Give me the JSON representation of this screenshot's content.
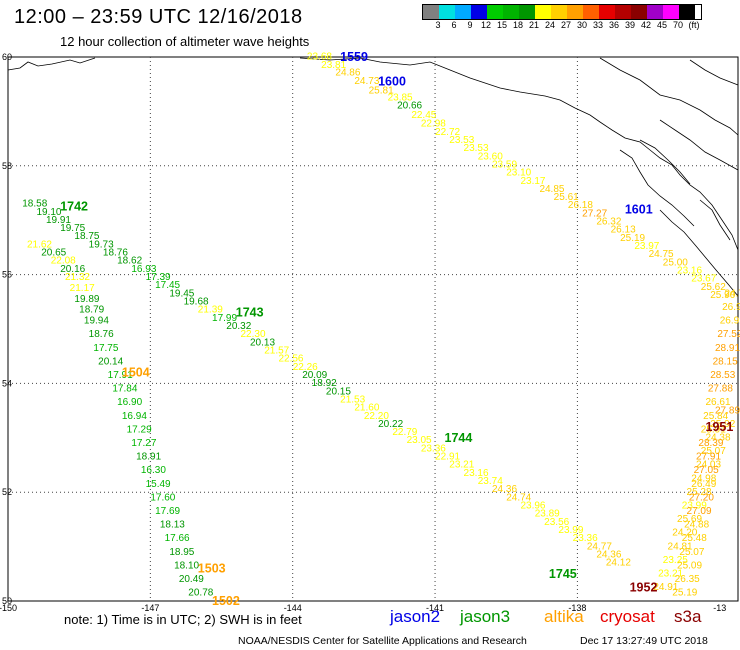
{
  "header": {
    "title": "12:00 – 23:59 UTC 12/16/2018",
    "subtitle": "12 hour collection of altimeter wave heights"
  },
  "legend": {
    "colors": [
      "#808080",
      "#00e0e0",
      "#00aaff",
      "#0000e6",
      "#00cc00",
      "#00b400",
      "#009600",
      "#ffff00",
      "#ffd000",
      "#ffa000",
      "#ff6000",
      "#e60000",
      "#b40000",
      "#8a0000",
      "#a000c8",
      "#ff00ff",
      "#000000"
    ],
    "labels": [
      "3",
      "6",
      "9",
      "12",
      "15",
      "18",
      "21",
      "24",
      "27",
      "30",
      "33",
      "36",
      "39",
      "42",
      "45",
      "70",
      "(ft)"
    ]
  },
  "axes": {
    "lon_labels": [
      "-150",
      "-147",
      "-144",
      "-141",
      "-138",
      "-13"
    ],
    "lat_labels": [
      "60",
      "58",
      "56",
      "54",
      "52",
      "50"
    ]
  },
  "note": "note: 1) Time is in UTC; 2) SWH is in feet",
  "satellites": [
    {
      "name": "jason2",
      "color": "#0000e6"
    },
    {
      "name": "jason3",
      "color": "#009600"
    },
    {
      "name": "altika",
      "color": "#ffa000"
    },
    {
      "name": "cryosat",
      "color": "#e60000"
    },
    {
      "name": "s3a",
      "color": "#8a0000"
    }
  ],
  "footer": {
    "org": "NOAA/NESDIS Center for Satellite Applications and Research",
    "timestamp": "Dec 17 13:27:49 UTC 2018"
  },
  "chart_data": {
    "type": "scatter",
    "xlim": [
      -150,
      -135
    ],
    "ylim": [
      50,
      60
    ],
    "time_labels": [
      {
        "text": "1559",
        "lon": -143.0,
        "lat": 60.0,
        "color": "#0000e6"
      },
      {
        "text": "1600",
        "lon": -142.2,
        "lat": 59.55,
        "color": "#0000e6"
      },
      {
        "text": "1601",
        "lon": -137.0,
        "lat": 57.2,
        "color": "#0000e6"
      },
      {
        "text": "1742",
        "lon": -148.9,
        "lat": 57.25,
        "color": "#009600"
      },
      {
        "text": "1743",
        "lon": -145.2,
        "lat": 55.3,
        "color": "#009600"
      },
      {
        "text": "1744",
        "lon": -140.8,
        "lat": 53.0,
        "color": "#009600"
      },
      {
        "text": "1745",
        "lon": -138.6,
        "lat": 50.5,
        "color": "#009600"
      },
      {
        "text": "1504",
        "lon": -147.6,
        "lat": 54.2,
        "color": "#ffa000"
      },
      {
        "text": "1503",
        "lon": -146.0,
        "lat": 50.6,
        "color": "#ffa000"
      },
      {
        "text": "1502",
        "lon": -145.7,
        "lat": 50.0,
        "color": "#ffa000"
      },
      {
        "text": "1951",
        "lon": -135.3,
        "lat": 53.2,
        "color": "#8a0000"
      },
      {
        "text": "1952",
        "lon": -136.9,
        "lat": 50.25,
        "color": "#8a0000"
      }
    ],
    "tracks": [
      {
        "name": "jason2 pass 1559-1601",
        "points": [
          {
            "lon": -143.7,
            "lat": 59.95,
            "v": 23.68
          },
          {
            "lon": -143.4,
            "lat": 59.8,
            "v": 23.81
          },
          {
            "lon": -143.1,
            "lat": 59.66,
            "v": 24.86
          },
          {
            "lon": -142.7,
            "lat": 59.5,
            "v": 24.73
          },
          {
            "lon": -142.4,
            "lat": 59.33,
            "v": 25.81
          },
          {
            "lon": -142.0,
            "lat": 59.2,
            "v": 23.85
          },
          {
            "lon": -141.8,
            "lat": 59.05,
            "v": 20.66
          },
          {
            "lon": -141.5,
            "lat": 58.88,
            "v": 22.45
          },
          {
            "lon": -141.3,
            "lat": 58.72,
            "v": 22.98
          },
          {
            "lon": -141.0,
            "lat": 58.57,
            "v": 22.72
          },
          {
            "lon": -140.7,
            "lat": 58.42,
            "v": 23.53
          },
          {
            "lon": -140.4,
            "lat": 58.27,
            "v": 23.53
          },
          {
            "lon": -140.1,
            "lat": 58.12,
            "v": 23.6
          },
          {
            "lon": -139.8,
            "lat": 57.97,
            "v": 23.59
          },
          {
            "lon": -139.5,
            "lat": 57.82,
            "v": 23.1
          },
          {
            "lon": -139.2,
            "lat": 57.67,
            "v": 23.17
          },
          {
            "lon": -138.8,
            "lat": 57.52,
            "v": 24.85
          },
          {
            "lon": -138.5,
            "lat": 57.37,
            "v": 25.61
          },
          {
            "lon": -138.2,
            "lat": 57.22,
            "v": 26.18
          },
          {
            "lon": -137.9,
            "lat": 57.07,
            "v": 27.27
          },
          {
            "lon": -137.6,
            "lat": 56.92,
            "v": 26.32
          },
          {
            "lon": -137.3,
            "lat": 56.77,
            "v": 26.13
          },
          {
            "lon": -137.1,
            "lat": 56.62,
            "v": 25.19
          },
          {
            "lon": -136.8,
            "lat": 56.47,
            "v": 23.97
          },
          {
            "lon": -136.5,
            "lat": 56.32,
            "v": 24.75
          },
          {
            "lon": -136.2,
            "lat": 56.17,
            "v": 25.0
          },
          {
            "lon": -135.9,
            "lat": 56.02,
            "v": 23.16
          },
          {
            "lon": -135.6,
            "lat": 55.87,
            "v": 23.67
          },
          {
            "lon": -135.4,
            "lat": 55.72,
            "v": 25.62
          },
          {
            "lon": -135.2,
            "lat": 55.57,
            "v": 25.9
          }
        ]
      },
      {
        "name": "jason3 pass 1742-1745",
        "points": [
          {
            "lon": -149.7,
            "lat": 57.25,
            "v": 18.58
          },
          {
            "lon": -149.4,
            "lat": 57.1,
            "v": 19.1
          },
          {
            "lon": -149.2,
            "lat": 56.95,
            "v": 19.91
          },
          {
            "lon": -148.9,
            "lat": 56.8,
            "v": 19.75
          },
          {
            "lon": -148.6,
            "lat": 56.65,
            "v": 18.75
          },
          {
            "lon": -148.3,
            "lat": 56.5,
            "v": 19.73
          },
          {
            "lon": -148.0,
            "lat": 56.35,
            "v": 18.76
          },
          {
            "lon": -147.7,
            "lat": 56.2,
            "v": 18.62
          },
          {
            "lon": -147.4,
            "lat": 56.05,
            "v": 16.93
          },
          {
            "lon": -147.1,
            "lat": 55.9,
            "v": 17.39
          },
          {
            "lon": -146.9,
            "lat": 55.75,
            "v": 17.45
          },
          {
            "lon": -146.6,
            "lat": 55.6,
            "v": 19.45
          },
          {
            "lon": -146.3,
            "lat": 55.45,
            "v": 19.68
          },
          {
            "lon": -146.0,
            "lat": 55.3,
            "v": 21.39
          },
          {
            "lon": -145.7,
            "lat": 55.15,
            "v": 17.99
          },
          {
            "lon": -145.4,
            "lat": 55.0,
            "v": 20.32
          },
          {
            "lon": -145.1,
            "lat": 54.85,
            "v": 22.3
          },
          {
            "lon": -144.9,
            "lat": 54.7,
            "v": 20.13
          },
          {
            "lon": -144.6,
            "lat": 54.55,
            "v": 21.57
          },
          {
            "lon": -144.3,
            "lat": 54.4,
            "v": 22.56
          },
          {
            "lon": -144.0,
            "lat": 54.25,
            "v": 22.26
          },
          {
            "lon": -143.8,
            "lat": 54.1,
            "v": 20.09
          },
          {
            "lon": -143.6,
            "lat": 53.95,
            "v": 18.92
          },
          {
            "lon": -143.3,
            "lat": 53.8,
            "v": 20.15
          },
          {
            "lon": -143.0,
            "lat": 53.65,
            "v": 21.53
          },
          {
            "lon": -142.7,
            "lat": 53.5,
            "v": 21.6
          },
          {
            "lon": -142.5,
            "lat": 53.35,
            "v": 22.2
          },
          {
            "lon": -142.2,
            "lat": 53.2,
            "v": 20.22
          },
          {
            "lon": -141.9,
            "lat": 53.05,
            "v": 22.79
          },
          {
            "lon": -141.6,
            "lat": 52.9,
            "v": 23.05
          },
          {
            "lon": -141.3,
            "lat": 52.75,
            "v": 23.36
          },
          {
            "lon": -141.0,
            "lat": 52.6,
            "v": 22.91
          },
          {
            "lon": -140.7,
            "lat": 52.45,
            "v": 23.21
          },
          {
            "lon": -140.4,
            "lat": 52.3,
            "v": 23.16
          },
          {
            "lon": -140.1,
            "lat": 52.15,
            "v": 23.74
          },
          {
            "lon": -139.8,
            "lat": 52.0,
            "v": 24.36
          },
          {
            "lon": -139.5,
            "lat": 51.85,
            "v": 24.74
          },
          {
            "lon": -139.2,
            "lat": 51.7,
            "v": 23.96
          },
          {
            "lon": -138.9,
            "lat": 51.55,
            "v": 23.89
          },
          {
            "lon": -138.7,
            "lat": 51.4,
            "v": 23.56
          },
          {
            "lon": -138.4,
            "lat": 51.25,
            "v": 23.99
          },
          {
            "lon": -138.1,
            "lat": 51.1,
            "v": 23.36
          },
          {
            "lon": -137.8,
            "lat": 50.95,
            "v": 24.77
          },
          {
            "lon": -137.6,
            "lat": 50.8,
            "v": 24.36
          },
          {
            "lon": -137.4,
            "lat": 50.65,
            "v": 24.12
          }
        ]
      },
      {
        "name": "altika pass 1502-1504",
        "points": [
          {
            "lon": -149.6,
            "lat": 56.5,
            "v": 21.62
          },
          {
            "lon": -149.3,
            "lat": 56.35,
            "v": 20.65
          },
          {
            "lon": -149.1,
            "lat": 56.2,
            "v": 22.08
          },
          {
            "lon": -148.9,
            "lat": 56.05,
            "v": 20.16
          },
          {
            "lon": -148.8,
            "lat": 55.9,
            "v": 21.32
          },
          {
            "lon": -148.7,
            "lat": 55.7,
            "v": 21.17
          },
          {
            "lon": -148.6,
            "lat": 55.5,
            "v": 19.89
          },
          {
            "lon": -148.5,
            "lat": 55.3,
            "v": 18.79
          },
          {
            "lon": -148.4,
            "lat": 55.1,
            "v": 19.94
          },
          {
            "lon": -148.3,
            "lat": 54.85,
            "v": 18.76
          },
          {
            "lon": -148.2,
            "lat": 54.6,
            "v": 17.75
          },
          {
            "lon": -148.1,
            "lat": 54.35,
            "v": 20.14
          },
          {
            "lon": -147.9,
            "lat": 54.1,
            "v": 17.91
          },
          {
            "lon": -147.8,
            "lat": 53.85,
            "v": 17.84
          },
          {
            "lon": -147.7,
            "lat": 53.6,
            "v": 16.9
          },
          {
            "lon": -147.6,
            "lat": 53.35,
            "v": 16.94
          },
          {
            "lon": -147.5,
            "lat": 53.1,
            "v": 17.29
          },
          {
            "lon": -147.4,
            "lat": 52.85,
            "v": 17.27
          },
          {
            "lon": -147.3,
            "lat": 52.6,
            "v": 18.91
          },
          {
            "lon": -147.2,
            "lat": 52.35,
            "v": 16.3
          },
          {
            "lon": -147.1,
            "lat": 52.1,
            "v": 15.49
          },
          {
            "lon": -147.0,
            "lat": 51.85,
            "v": 17.6
          },
          {
            "lon": -146.9,
            "lat": 51.6,
            "v": 17.69
          },
          {
            "lon": -146.8,
            "lat": 51.35,
            "v": 18.13
          },
          {
            "lon": -146.7,
            "lat": 51.1,
            "v": 17.66
          },
          {
            "lon": -146.6,
            "lat": 50.85,
            "v": 18.95
          },
          {
            "lon": -146.5,
            "lat": 50.6,
            "v": 18.1
          },
          {
            "lon": -146.4,
            "lat": 50.35,
            "v": 20.49
          },
          {
            "lon": -146.2,
            "lat": 50.1,
            "v": 20.78
          }
        ]
      },
      {
        "name": "cryosat pass 1951-1952",
        "points": [
          {
            "lon": -136.4,
            "lat": 50.2,
            "v": 24.91
          },
          {
            "lon": -136.3,
            "lat": 50.45,
            "v": 23.21
          },
          {
            "lon": -136.2,
            "lat": 50.7,
            "v": 23.25
          },
          {
            "lon": -136.1,
            "lat": 50.95,
            "v": 24.81
          },
          {
            "lon": -136.0,
            "lat": 51.2,
            "v": 24.2
          },
          {
            "lon": -135.9,
            "lat": 51.45,
            "v": 25.69
          },
          {
            "lon": -135.8,
            "lat": 51.7,
            "v": 23.99
          },
          {
            "lon": -135.7,
            "lat": 51.95,
            "v": 25.28
          },
          {
            "lon": -135.6,
            "lat": 52.2,
            "v": 24.98
          },
          {
            "lon": -135.5,
            "lat": 52.45,
            "v": 24.03
          },
          {
            "lon": -135.4,
            "lat": 52.7,
            "v": 25.07
          },
          {
            "lon": -135.3,
            "lat": 52.95,
            "v": 24.38
          },
          {
            "lon": -135.2,
            "lat": 53.2,
            "v": 25.92
          },
          {
            "lon": -135.1,
            "lat": 53.45,
            "v": 27.89
          }
        ]
      },
      {
        "name": "s3a pass 1951-1952",
        "points": [
          {
            "lon": -136.0,
            "lat": 50.1,
            "v": 25.19
          },
          {
            "lon": -135.95,
            "lat": 50.35,
            "v": 26.35
          },
          {
            "lon": -135.9,
            "lat": 50.6,
            "v": 25.09
          },
          {
            "lon": -135.85,
            "lat": 50.85,
            "v": 25.07
          },
          {
            "lon": -135.8,
            "lat": 51.1,
            "v": 25.48
          },
          {
            "lon": -135.75,
            "lat": 51.35,
            "v": 24.88
          },
          {
            "lon": -135.7,
            "lat": 51.6,
            "v": 27.09
          },
          {
            "lon": -135.65,
            "lat": 51.85,
            "v": 27.2
          },
          {
            "lon": -135.6,
            "lat": 52.1,
            "v": 26.49
          },
          {
            "lon": -135.55,
            "lat": 52.35,
            "v": 27.05
          },
          {
            "lon": -135.5,
            "lat": 52.6,
            "v": 27.91
          },
          {
            "lon": -135.45,
            "lat": 52.85,
            "v": 28.39
          },
          {
            "lon": -135.4,
            "lat": 53.1,
            "v": 25.91
          },
          {
            "lon": -135.35,
            "lat": 53.35,
            "v": 25.84
          },
          {
            "lon": -135.3,
            "lat": 53.6,
            "v": 26.61
          },
          {
            "lon": -135.25,
            "lat": 53.85,
            "v": 27.88
          },
          {
            "lon": -135.2,
            "lat": 54.1,
            "v": 28.53
          },
          {
            "lon": -135.15,
            "lat": 54.35,
            "v": 28.15
          },
          {
            "lon": -135.1,
            "lat": 54.6,
            "v": 28.91
          },
          {
            "lon": -135.05,
            "lat": 54.85,
            "v": 27.52
          },
          {
            "lon": -135.0,
            "lat": 55.1,
            "v": 26.92
          },
          {
            "lon": -134.95,
            "lat": 55.35,
            "v": 26.9
          },
          {
            "lon": -134.9,
            "lat": 55.6,
            "v": 24.78
          }
        ]
      }
    ]
  }
}
